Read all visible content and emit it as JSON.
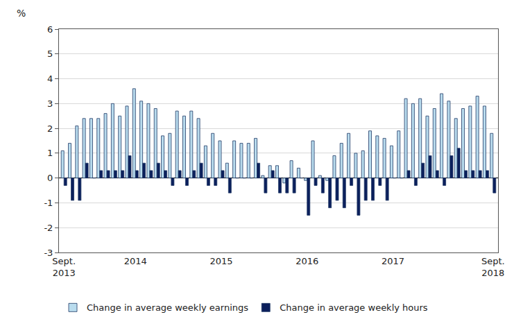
{
  "chart_data": {
    "type": "bar",
    "y_label": "%",
    "categories": [
      "Sept.\n2013",
      null,
      null,
      null,
      null,
      null,
      null,
      null,
      null,
      null,
      "2014",
      null,
      null,
      null,
      null,
      null,
      null,
      null,
      null,
      null,
      null,
      null,
      "2015",
      null,
      null,
      null,
      null,
      null,
      null,
      null,
      null,
      null,
      null,
      null,
      "2016",
      null,
      null,
      null,
      null,
      null,
      null,
      null,
      null,
      null,
      null,
      null,
      "2017",
      null,
      null,
      null,
      null,
      null,
      null,
      null,
      null,
      null,
      null,
      null,
      null,
      null,
      "Sept.\n2018"
    ],
    "series": [
      {
        "name": "Change in average weekly earnings",
        "color": "#b9dcee",
        "values": [
          1.1,
          1.4,
          2.1,
          2.4,
          2.4,
          2.4,
          2.6,
          3.0,
          2.5,
          2.9,
          3.6,
          3.1,
          3.0,
          2.8,
          1.7,
          1.8,
          2.7,
          2.5,
          2.7,
          2.4,
          1.3,
          1.8,
          1.5,
          0.6,
          1.5,
          1.4,
          1.4,
          1.6,
          0.1,
          0.5,
          0.5,
          -0.2,
          0.7,
          0.4,
          -0.1,
          1.5,
          0.1,
          -0.1,
          0.9,
          1.4,
          1.8,
          1.0,
          1.1,
          1.9,
          1.7,
          1.6,
          1.3,
          1.9,
          3.2,
          3.0,
          3.2,
          2.5,
          2.8,
          3.4,
          3.1,
          2.4,
          2.8,
          2.9,
          3.3,
          2.9,
          1.8
        ]
      },
      {
        "name": "Change in average weekly hours",
        "color": "#0b1f5c",
        "values": [
          -0.3,
          -0.9,
          -0.9,
          0.6,
          0,
          0.3,
          0.3,
          0.3,
          0.3,
          0.9,
          0.3,
          0.6,
          0.3,
          0.6,
          0.3,
          -0.3,
          0.3,
          -0.3,
          0.3,
          0.6,
          -0.3,
          -0.3,
          0.3,
          -0.6,
          0,
          0,
          0,
          0.6,
          -0.6,
          0.3,
          -0.6,
          -0.6,
          -0.6,
          0,
          -1.5,
          -0.3,
          -0.6,
          -1.2,
          -0.9,
          -1.2,
          -0.3,
          -1.5,
          -0.9,
          -0.9,
          -0.3,
          -0.9,
          0,
          0,
          0.3,
          -0.3,
          0.6,
          0.9,
          0.3,
          -0.3,
          0.9,
          1.2,
          0.3,
          0.3,
          0.3,
          0.3,
          -0.6
        ]
      }
    ],
    "ylim": [
      -3,
      6
    ],
    "yticks": [
      -3,
      -2,
      -1,
      0,
      1,
      2,
      3,
      4,
      5,
      6
    ],
    "grid": true,
    "legend": "bottom"
  }
}
